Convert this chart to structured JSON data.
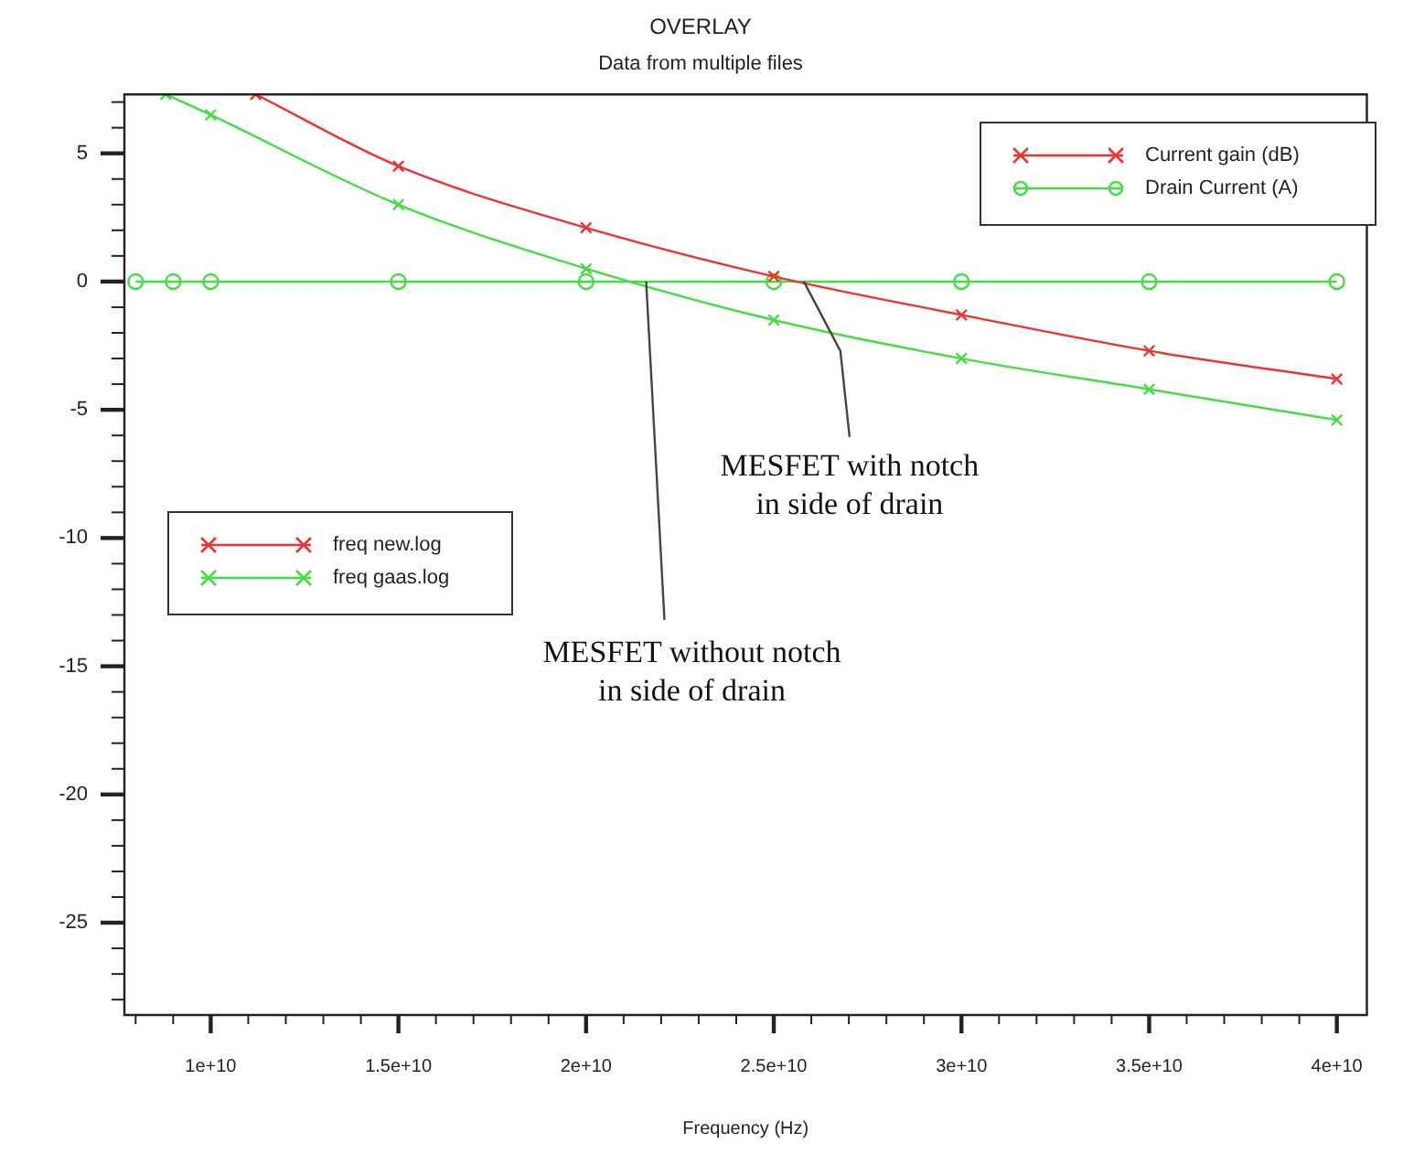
{
  "chart_data": {
    "type": "line",
    "title": "OVERLAY",
    "subtitle": "Data from multiple files",
    "xlabel": "Frequency (Hz)",
    "xlim": [
      7700000000.0,
      40800000000.0
    ],
    "xticks": [
      {
        "value": 8000000000.0,
        "label": null
      },
      {
        "value": 9000000000.0,
        "label": null
      },
      {
        "value": 10000000000.0,
        "label": "1e+10"
      },
      {
        "value": 11000000000.0,
        "label": null
      },
      {
        "value": 12000000000.0,
        "label": null
      },
      {
        "value": 13000000000.0,
        "label": null
      },
      {
        "value": 14000000000.0,
        "label": null
      },
      {
        "value": 15000000000.0,
        "label": "1.5e+10"
      },
      {
        "value": 16000000000.0,
        "label": null
      },
      {
        "value": 17000000000.0,
        "label": null
      },
      {
        "value": 18000000000.0,
        "label": null
      },
      {
        "value": 19000000000.0,
        "label": null
      },
      {
        "value": 20000000000.0,
        "label": "2e+10"
      },
      {
        "value": 21000000000.0,
        "label": null
      },
      {
        "value": 22000000000.0,
        "label": null
      },
      {
        "value": 23000000000.0,
        "label": null
      },
      {
        "value": 24000000000.0,
        "label": null
      },
      {
        "value": 25000000000.0,
        "label": "2.5e+10"
      },
      {
        "value": 26000000000.0,
        "label": null
      },
      {
        "value": 27000000000.0,
        "label": null
      },
      {
        "value": 28000000000.0,
        "label": null
      },
      {
        "value": 29000000000.0,
        "label": null
      },
      {
        "value": 30000000000.0,
        "label": "3e+10"
      },
      {
        "value": 31000000000.0,
        "label": null
      },
      {
        "value": 32000000000.0,
        "label": null
      },
      {
        "value": 33000000000.0,
        "label": null
      },
      {
        "value": 34000000000.0,
        "label": null
      },
      {
        "value": 35000000000.0,
        "label": "3.5e+10"
      },
      {
        "value": 36000000000.0,
        "label": null
      },
      {
        "value": 37000000000.0,
        "label": null
      },
      {
        "value": 38000000000.0,
        "label": null
      },
      {
        "value": 39000000000.0,
        "label": null
      },
      {
        "value": 40000000000.0,
        "label": "4e+10"
      }
    ],
    "ylim": [
      -28.6,
      7.3
    ],
    "yticks": [
      {
        "value": -28,
        "label": null
      },
      {
        "value": -27,
        "label": null
      },
      {
        "value": -26,
        "label": null
      },
      -25,
      {
        "value": -24,
        "label": null
      },
      {
        "value": -23,
        "label": null
      },
      {
        "value": -22,
        "label": null
      },
      {
        "value": -21,
        "label": null
      },
      -20,
      {
        "value": -19,
        "label": null
      },
      {
        "value": -18,
        "label": null
      },
      {
        "value": -17,
        "label": null
      },
      {
        "value": -16,
        "label": null
      },
      -15,
      {
        "value": -14,
        "label": null
      },
      {
        "value": -13,
        "label": null
      },
      {
        "value": -12,
        "label": null
      },
      {
        "value": -11,
        "label": null
      },
      -10,
      {
        "value": -9,
        "label": null
      },
      {
        "value": -8,
        "label": null
      },
      {
        "value": -7,
        "label": null
      },
      {
        "value": -6,
        "label": null
      },
      -5,
      {
        "value": -4,
        "label": null
      },
      {
        "value": -3,
        "label": null
      },
      {
        "value": -2,
        "label": null
      },
      {
        "value": -1,
        "label": null
      },
      0,
      {
        "value": 1,
        "label": null
      },
      {
        "value": 2,
        "label": null
      },
      {
        "value": 3,
        "label": null
      },
      {
        "value": 4,
        "label": null
      },
      5,
      {
        "value": 6,
        "label": null
      },
      {
        "value": 7,
        "label": null
      }
    ],
    "grid": false,
    "legend": "left",
    "line_style": "solid",
    "series": [
      {
        "name": "freq new.log",
        "color": "#ee3333",
        "marker": "cross",
        "x": [
          11200000000.0,
          15000000000.0,
          20000000000.0,
          25000000000.0,
          30000000000.0,
          35000000000.0,
          40000000000.0
        ],
        "values": [
          7.3,
          4.5,
          2.1,
          0.2,
          -1.3,
          -2.7,
          -3.8
        ]
      },
      {
        "name": "freq gaas.log",
        "color": "#44dd44",
        "marker": "cross",
        "x": [
          8800000000.0,
          10000000000.0,
          15000000000.0,
          20000000000.0,
          25000000000.0,
          30000000000.0,
          35000000000.0,
          40000000000.0
        ],
        "values": [
          7.3,
          6.5,
          3.0,
          0.5,
          -1.5,
          -3.0,
          -4.2,
          -5.4
        ]
      },
      {
        "name": "Drain Current (A)",
        "color": "#44dd44",
        "marker": "circle",
        "x": [
          8000000000.0,
          9000000000.0,
          10000000000.0,
          15000000000.0,
          20000000000.0,
          25000000000.0,
          30000000000.0,
          35000000000.0,
          40000000000.0
        ],
        "values": [
          0,
          0,
          0,
          0,
          0,
          0,
          0,
          0,
          0
        ]
      }
    ],
    "annotations": [
      {
        "text": "MESFET with notch\nin side of drain",
        "x": 25800000000.0,
        "y": 0
      },
      {
        "text": "MESFET without notch\nin side of drain",
        "x": 21600000000.0,
        "y": 0
      },
      "Current gain (dB)"
    ]
  }
}
